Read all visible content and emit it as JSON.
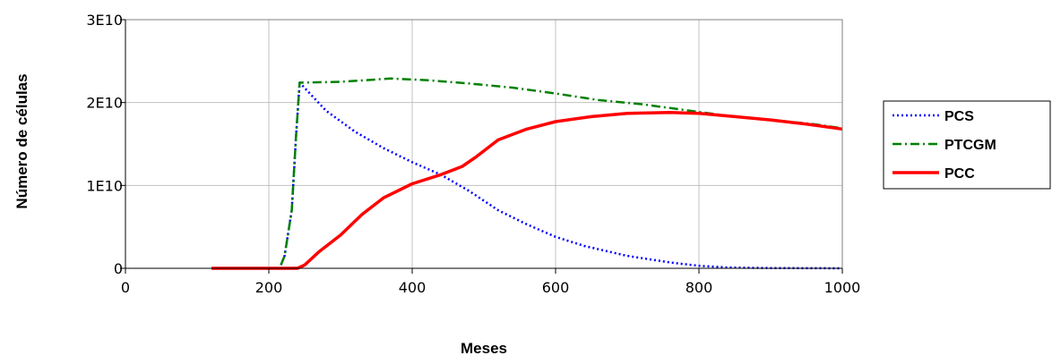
{
  "chart_data": {
    "type": "line",
    "xlabel": "Meses",
    "ylabel": "Número de células",
    "xlim": [
      0,
      1000
    ],
    "ylim": [
      0,
      30000000000
    ],
    "x_ticks": [
      0,
      200,
      400,
      600,
      800,
      1000
    ],
    "x_tick_labels": [
      "0",
      "200",
      "400",
      "600",
      "800",
      "1000"
    ],
    "y_ticks": [
      0,
      10000000000,
      20000000000,
      30000000000
    ],
    "y_tick_labels": [
      "0",
      "1E10",
      "2E10",
      "3E10"
    ],
    "grid": true,
    "legend_position": "right",
    "series": [
      {
        "name": "PCS",
        "color": "#0000ff",
        "style": "dotted",
        "points": [
          [
            120,
            0
          ],
          [
            215,
            0
          ],
          [
            222,
            1500000000
          ],
          [
            232,
            7000000000
          ],
          [
            238,
            16000000000
          ],
          [
            243,
            22400000000
          ],
          [
            280,
            19000000000
          ],
          [
            320,
            16500000000
          ],
          [
            360,
            14500000000
          ],
          [
            400,
            12800000000
          ],
          [
            440,
            11300000000
          ],
          [
            480,
            9300000000
          ],
          [
            520,
            7000000000
          ],
          [
            560,
            5300000000
          ],
          [
            600,
            3800000000
          ],
          [
            640,
            2700000000
          ],
          [
            700,
            1500000000
          ],
          [
            760,
            700000000
          ],
          [
            800,
            300000000
          ],
          [
            840,
            100000000
          ],
          [
            900,
            30000000
          ],
          [
            1000,
            0
          ]
        ]
      },
      {
        "name": "PTCGM",
        "color": "#008000",
        "style": "dashdot",
        "points": [
          [
            120,
            0
          ],
          [
            215,
            0
          ],
          [
            222,
            1500000000
          ],
          [
            232,
            7000000000
          ],
          [
            238,
            16000000000
          ],
          [
            243,
            22400000000
          ],
          [
            300,
            22500000000
          ],
          [
            370,
            22900000000
          ],
          [
            420,
            22700000000
          ],
          [
            480,
            22300000000
          ],
          [
            540,
            21800000000
          ],
          [
            600,
            21100000000
          ],
          [
            660,
            20300000000
          ],
          [
            720,
            19800000000
          ],
          [
            780,
            19100000000
          ],
          [
            840,
            18400000000
          ],
          [
            900,
            17900000000
          ],
          [
            960,
            17400000000
          ],
          [
            1000,
            16900000000
          ]
        ]
      },
      {
        "name": "PCC",
        "color": "#ff0000",
        "style": "solid",
        "points": [
          [
            120,
            0
          ],
          [
            240,
            0
          ],
          [
            250,
            400000000
          ],
          [
            270,
            2000000000
          ],
          [
            300,
            4000000000
          ],
          [
            330,
            6500000000
          ],
          [
            360,
            8500000000
          ],
          [
            400,
            10200000000
          ],
          [
            440,
            11300000000
          ],
          [
            470,
            12300000000
          ],
          [
            490,
            13500000000
          ],
          [
            520,
            15500000000
          ],
          [
            560,
            16800000000
          ],
          [
            600,
            17700000000
          ],
          [
            650,
            18300000000
          ],
          [
            700,
            18700000000
          ],
          [
            760,
            18800000000
          ],
          [
            800,
            18700000000
          ],
          [
            850,
            18300000000
          ],
          [
            900,
            17900000000
          ],
          [
            950,
            17400000000
          ],
          [
            1000,
            16800000000
          ]
        ]
      }
    ]
  }
}
